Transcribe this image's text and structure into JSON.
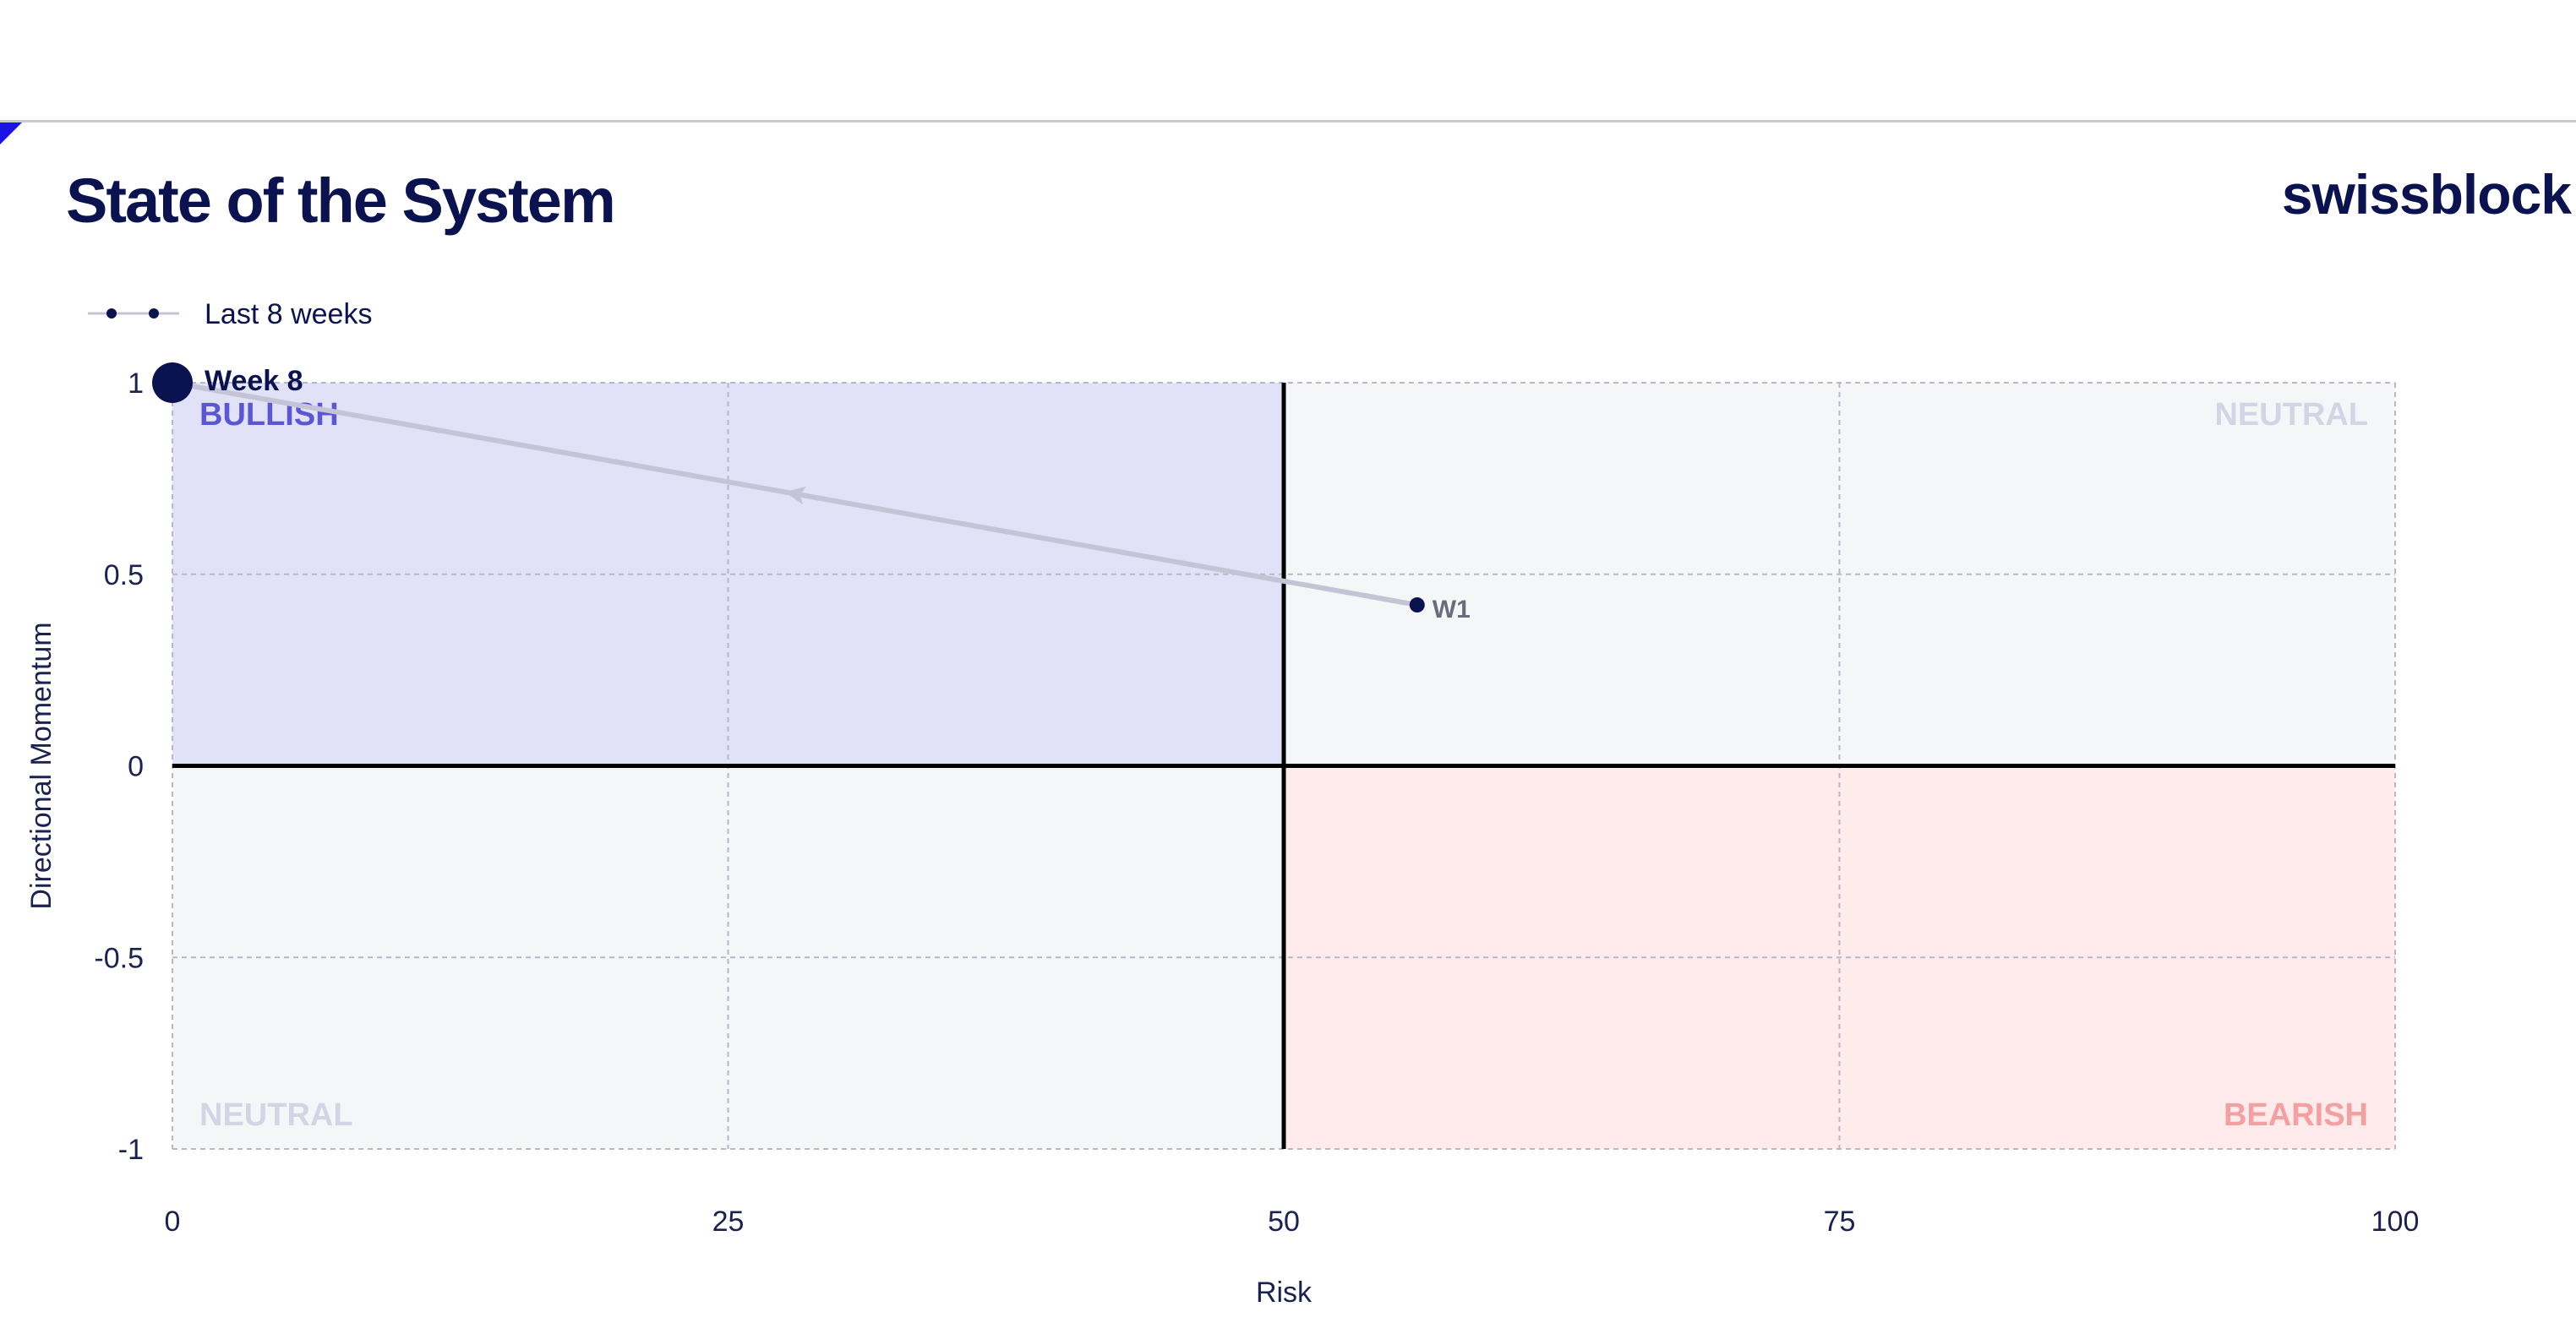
{
  "header": {
    "title": "State of the System",
    "logo_text": "swissblock"
  },
  "chart_data": {
    "type": "scatter",
    "title": "State of the System",
    "xlabel": "Risk",
    "ylabel": "Directional Momentum",
    "xlim": [
      0,
      100
    ],
    "ylim": [
      -1,
      1
    ],
    "x_ticks": [
      "0",
      "25",
      "50",
      "75",
      "100"
    ],
    "y_ticks": [
      "-1",
      "-0.5",
      "0",
      "0.5",
      "1"
    ],
    "grid": true,
    "legend": {
      "position": "top-left",
      "label": "Last 8 weeks"
    },
    "quadrants": [
      {
        "label": "BULLISH",
        "region": "top-left",
        "color": "#e1e1f8",
        "label_color": "#5a57d6"
      },
      {
        "label": "NEUTRAL",
        "region": "top-right",
        "color": "#f5f6f8",
        "label_color": "#d4d5e4"
      },
      {
        "label": "NEUTRAL",
        "region": "bottom-left",
        "color": "#f5f6f8",
        "label_color": "#d4d5e4"
      },
      {
        "label": "BEARISH",
        "region": "bottom-right",
        "color": "#ffebeb",
        "label_color": "#f5a0a0"
      }
    ],
    "series": [
      {
        "name": "Last 8 weeks",
        "points": [
          {
            "x": 56,
            "y": 0.42,
            "label": "W1"
          },
          {
            "x": 0,
            "y": 1.0,
            "label": "Week 8"
          }
        ]
      }
    ],
    "colors": {
      "navy": "#0b1250",
      "line": "#c4c4d6",
      "axis_text": "#1b2150",
      "grid": "#b7b7c7"
    }
  }
}
